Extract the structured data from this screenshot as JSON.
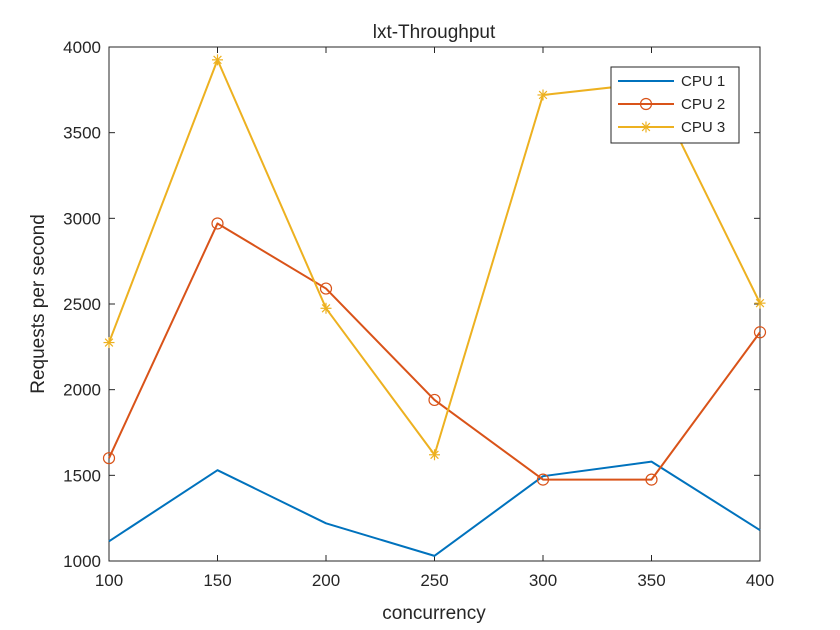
{
  "chart_data": {
    "type": "line",
    "title": "lxt-Throughput",
    "xlabel": "concurrency",
    "ylabel": "Requests per second",
    "xlim": [
      100,
      400
    ],
    "ylim": [
      1000,
      4000
    ],
    "x": [
      100,
      150,
      200,
      250,
      300,
      350,
      400
    ],
    "xticks": [
      100,
      150,
      200,
      250,
      300,
      350,
      400
    ],
    "yticks": [
      1000,
      1500,
      2000,
      2500,
      3000,
      3500,
      4000
    ],
    "grid": false,
    "legend_position": "top-right",
    "series": [
      {
        "name": "CPU 1",
        "values": [
          1115,
          1530,
          1220,
          1030,
          1495,
          1580,
          1180
        ],
        "color": "#0072BD",
        "marker": "none"
      },
      {
        "name": "CPU 2",
        "values": [
          1600,
          2970,
          2590,
          1940,
          1475,
          1475,
          2335
        ],
        "color": "#D95319",
        "marker": "circle"
      },
      {
        "name": "CPU 3",
        "values": [
          2275,
          3925,
          2475,
          1620,
          3720,
          3790,
          2505
        ],
        "color": "#EDB120",
        "marker": "asterisk"
      }
    ]
  }
}
